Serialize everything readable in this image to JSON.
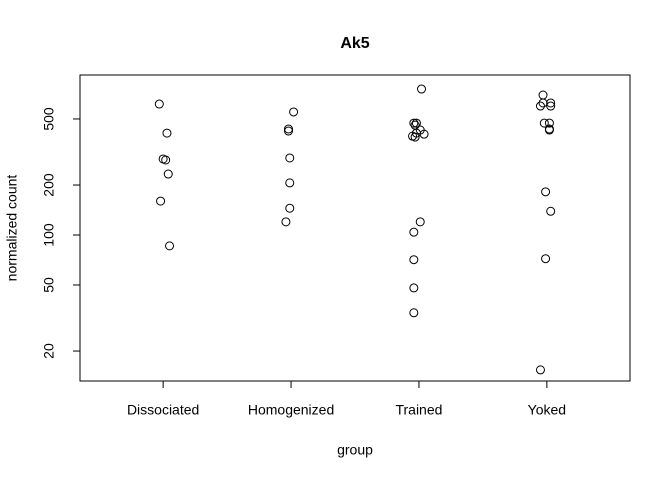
{
  "chart_data": {
    "type": "strip",
    "title": "Ak5",
    "x_label": "group",
    "y_label": "normalized count",
    "categories": [
      "Dissociated",
      "Homogenized",
      "Trained",
      "Yoked"
    ],
    "groups": [
      {
        "x": [
          0.97,
          1.03,
          1.0,
          1.02,
          1.04,
          0.98,
          1.05
        ],
        "values": [
          615,
          411,
          287,
          283,
          233,
          160,
          86
        ]
      },
      {
        "x": [
          2.02,
          1.98,
          1.98,
          1.99,
          1.99,
          1.99,
          1.96
        ],
        "values": [
          551,
          435,
          423,
          291,
          206,
          145,
          120
        ]
      },
      {
        "x": [
          3.02,
          2.96,
          2.98,
          2.97,
          2.95,
          2.97,
          2.98,
          3.01,
          3.04,
          3.01,
          2.96,
          2.96,
          2.96,
          2.96
        ],
        "values": [
          757,
          472,
          472,
          459,
          394,
          389,
          411,
          429,
          405,
          120,
          104,
          71,
          48,
          34
        ]
      },
      {
        "x": [
          3.97,
          3.97,
          4.03,
          3.95,
          4.03,
          3.98,
          4.02,
          4.02,
          4.02,
          3.99,
          4.03,
          3.99,
          3.95
        ],
        "values": [
          697,
          624,
          624,
          598,
          598,
          472,
          472,
          435,
          429,
          182,
          139,
          72,
          15.4
        ]
      }
    ],
    "color": "#000000",
    "xlim": [
      0.35,
      4.65
    ],
    "ylim": [
      13.2,
      920
    ],
    "log_y": true,
    "yticks": [
      20,
      50,
      100,
      200,
      500
    ]
  }
}
